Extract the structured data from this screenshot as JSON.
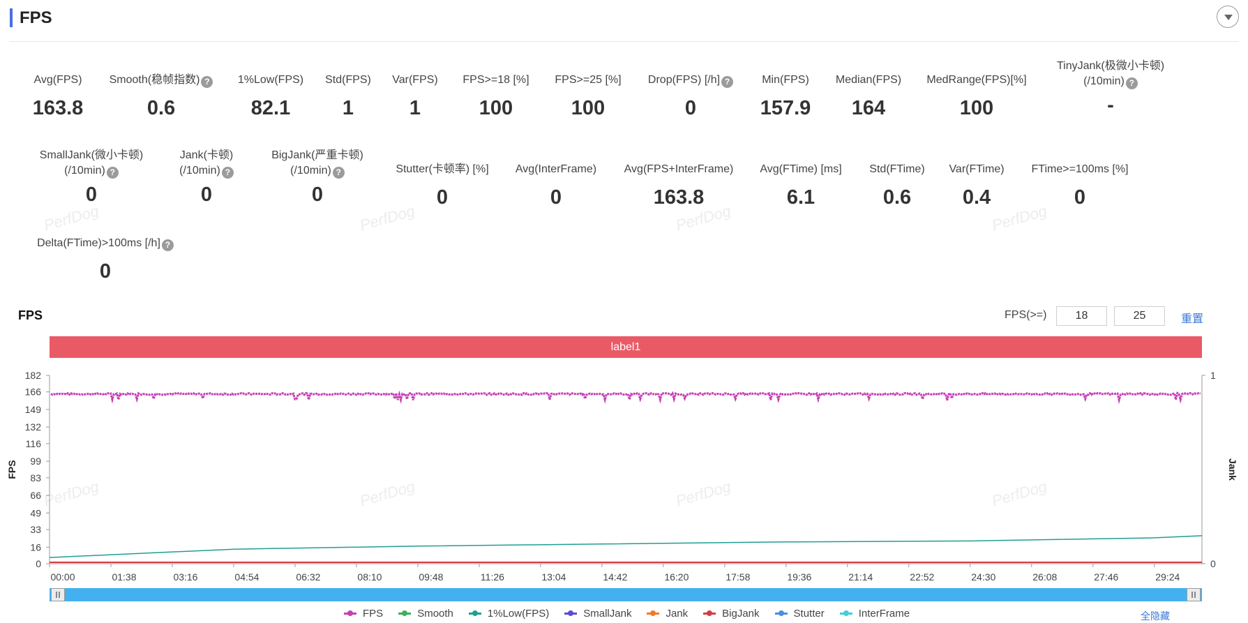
{
  "header": {
    "title": "FPS",
    "toggle_icon": "chevron-down-icon"
  },
  "metrics": [
    {
      "label": "Avg(FPS)",
      "value": "163.8",
      "help": false
    },
    {
      "label": "Smooth(稳帧指数)",
      "value": "0.6",
      "help": true
    },
    {
      "label": "1%Low(FPS)",
      "value": "82.1",
      "help": false
    },
    {
      "label": "Std(FPS)",
      "value": "1",
      "help": false
    },
    {
      "label": "Var(FPS)",
      "value": "1",
      "help": false
    },
    {
      "label": "FPS>=18 [%]",
      "value": "100",
      "help": false
    },
    {
      "label": "FPS>=25 [%]",
      "value": "100",
      "help": false
    },
    {
      "label": "Drop(FPS) [/h]",
      "value": "0",
      "help": true
    },
    {
      "label": "Min(FPS)",
      "value": "157.9",
      "help": false
    },
    {
      "label": "Median(FPS)",
      "value": "164",
      "help": false
    },
    {
      "label": "MedRange(FPS)[%]",
      "value": "100",
      "help": false
    },
    {
      "label": "TinyJank(极微小卡顿)",
      "label2": "(/10min)",
      "value": "-",
      "help": true
    },
    {
      "label": "SmallJank(微小卡顿)",
      "label2": "(/10min)",
      "value": "0",
      "help": true
    },
    {
      "label": "Jank(卡顿)",
      "label2": "(/10min)",
      "value": "0",
      "help": true
    },
    {
      "label": "BigJank(严重卡顿)",
      "label2": "(/10min)",
      "value": "0",
      "help": true
    },
    {
      "label": "Stutter(卡顿率) [%]",
      "value": "0",
      "help": false
    },
    {
      "label": "Avg(InterFrame)",
      "value": "0",
      "help": false
    },
    {
      "label": "Avg(FPS+InterFrame)",
      "value": "163.8",
      "help": false
    },
    {
      "label": "Avg(FTime) [ms]",
      "value": "6.1",
      "help": false
    },
    {
      "label": "Std(FTime)",
      "value": "0.6",
      "help": false
    },
    {
      "label": "Var(FTime)",
      "value": "0.4",
      "help": false
    },
    {
      "label": "FTime>=100ms [%]",
      "value": "0",
      "help": false
    },
    {
      "label": "Delta(FTime)>100ms [/h]",
      "value": "0",
      "help": true
    }
  ],
  "watermark": "PerfDog",
  "chart_section": {
    "title": "FPS",
    "threshold_label": "FPS(>=)",
    "threshold_1": "18",
    "threshold_2": "25",
    "reset_label": "重置",
    "label_band": "label1",
    "hide_all_label": "全隐藏"
  },
  "chart_data": {
    "type": "line",
    "ylabel": "FPS",
    "y2label": "Jank",
    "ylim": [
      0,
      182
    ],
    "yticks": [
      "182",
      "166",
      "149",
      "132",
      "116",
      "99",
      "83",
      "66",
      "49",
      "33",
      "16",
      "0"
    ],
    "y2lim": [
      0,
      1
    ],
    "y2ticks": [
      "1",
      "0"
    ],
    "xticks": [
      "00:00",
      "01:38",
      "03:16",
      "04:54",
      "06:32",
      "08:10",
      "09:48",
      "11:26",
      "13:04",
      "14:42",
      "16:20",
      "17:58",
      "19:36",
      "21:14",
      "22:52",
      "24:30",
      "26:08",
      "27:46",
      "29:24"
    ],
    "series": [
      {
        "name": "FPS",
        "color": "#c53fb5",
        "approx_level": 164,
        "min": 157.9,
        "max": 166
      },
      {
        "name": "Smooth",
        "color": "#3cb05a",
        "values": [
          0
        ]
      },
      {
        "name": "1%Low(FPS)",
        "color": "#1f9e93",
        "x": [
          "00:00",
          "04:54",
          "09:48",
          "14:42",
          "19:36",
          "24:30",
          "29:24",
          "30:40"
        ],
        "values": [
          6,
          14,
          17,
          19,
          21,
          22,
          25,
          27
        ]
      },
      {
        "name": "SmallJank",
        "color": "#5a4bd6",
        "values": [
          0
        ]
      },
      {
        "name": "Jank",
        "color": "#f07a2c",
        "values": [
          0
        ]
      },
      {
        "name": "BigJank",
        "color": "#d83a44",
        "values": [
          0
        ]
      },
      {
        "name": "Stutter",
        "color": "#4a8fe0",
        "values": [
          0
        ]
      },
      {
        "name": "InterFrame",
        "color": "#3fcfd6",
        "values": [
          0
        ]
      }
    ],
    "grid": false,
    "legend": "bottom"
  }
}
